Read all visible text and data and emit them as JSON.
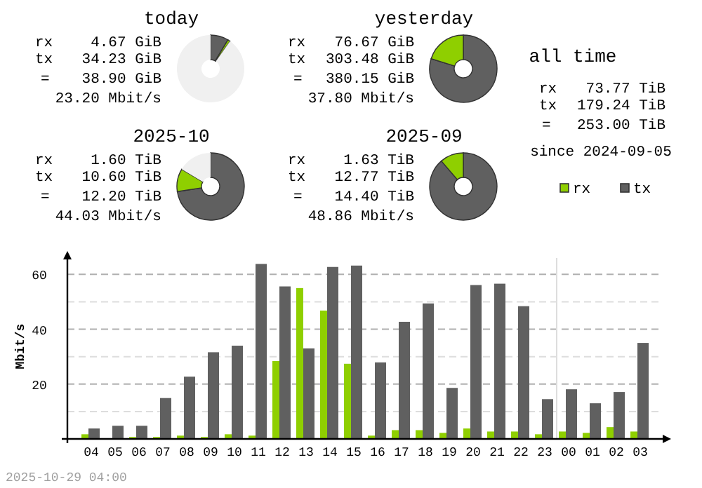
{
  "chart_data": [
    {
      "type": "donut",
      "title": "today",
      "categories": [
        null,
        null,
        null
      ],
      "values": [
        1.2,
        8.6,
        90.2
      ],
      "colors": [
        "#8fcf00",
        "#606060",
        "#f0f0f0"
      ],
      "annotations": [
        "rx",
        "4.67 GiB",
        "tx",
        "34.23 GiB",
        "=",
        "38.90 GiB",
        "23.20 Mbit/s"
      ]
    },
    {
      "type": "donut",
      "title": "yesterday",
      "categories": [
        null,
        null
      ],
      "values": [
        20.2,
        79.8
      ],
      "colors": [
        "#8fcf00",
        "#606060"
      ],
      "annotations": [
        "rx",
        "76.67 GiB",
        "tx",
        "303.48 GiB",
        "=",
        "380.15 GiB",
        "37.80 Mbit/s"
      ]
    },
    {
      "type": "donut",
      "title": "2025-10",
      "categories": [
        null,
        null,
        null
      ],
      "values": [
        11.0,
        72.6,
        16.4
      ],
      "colors": [
        "#8fcf00",
        "#606060",
        "#f0f0f0"
      ],
      "annotations": [
        "rx",
        "1.60 TiB",
        "tx",
        "10.60 TiB",
        "=",
        "12.20 TiB",
        "44.03 Mbit/s"
      ]
    },
    {
      "type": "donut",
      "title": "2025-09",
      "categories": [
        null,
        null
      ],
      "values": [
        11.3,
        88.7
      ],
      "colors": [
        "#8fcf00",
        "#606060"
      ],
      "annotations": [
        "rx",
        "1.63 TiB",
        "tx",
        "12.77 TiB",
        "=",
        "14.40 TiB",
        "48.86 Mbit/s"
      ]
    },
    {
      "type": "other",
      "title": "all time",
      "annotations": [
        "rx",
        "73.77 TiB",
        "tx",
        "179.24 TiB",
        "=",
        "253.00 TiB",
        "since 2024-09-05"
      ]
    },
    {
      "type": "bar",
      "ylabel": "Mbit/s",
      "categories": [
        "04",
        "05",
        "06",
        "07",
        "08",
        "09",
        "10",
        "11",
        "12",
        "13",
        "14",
        "15",
        "16",
        "17",
        "18",
        "19",
        "20",
        "21",
        "22",
        "23",
        "00",
        "01",
        "02",
        "03"
      ],
      "series": [
        {
          "name": "rx",
          "color": "#8fcf00",
          "values": [
            1.7,
            0,
            0.7,
            0.7,
            1.2,
            0.7,
            1.7,
            1.2,
            28.4,
            55.0,
            46.8,
            27.4,
            1.2,
            3.2,
            3.2,
            2.2,
            3.8,
            2.7,
            2.7,
            1.7,
            2.7,
            2.2,
            4.3,
            2.7
          ]
        },
        {
          "name": "tx",
          "color": "#606060",
          "values": [
            3.8,
            4.8,
            4.8,
            14.9,
            22.7,
            31.6,
            34.0,
            63.8,
            55.6,
            33.0,
            62.7,
            63.2,
            27.9,
            42.7,
            49.4,
            18.6,
            56.1,
            56.6,
            48.4,
            14.5,
            18.1,
            13.0,
            17.1,
            35.0
          ]
        }
      ],
      "ylim": [
        0,
        68
      ],
      "yticks": [
        {
          "value": 10,
          "label": null
        },
        20,
        {
          "value": 30,
          "label": null
        },
        40,
        {
          "value": 50,
          "label": null
        },
        60
      ],
      "grid": true,
      "legend": "top right",
      "ref_lines": [
        {
          "axis": "x",
          "value": "00",
          "color": "#dddddd"
        }
      ],
      "annotations": [
        "2025-10-29 04:00"
      ]
    }
  ]
}
